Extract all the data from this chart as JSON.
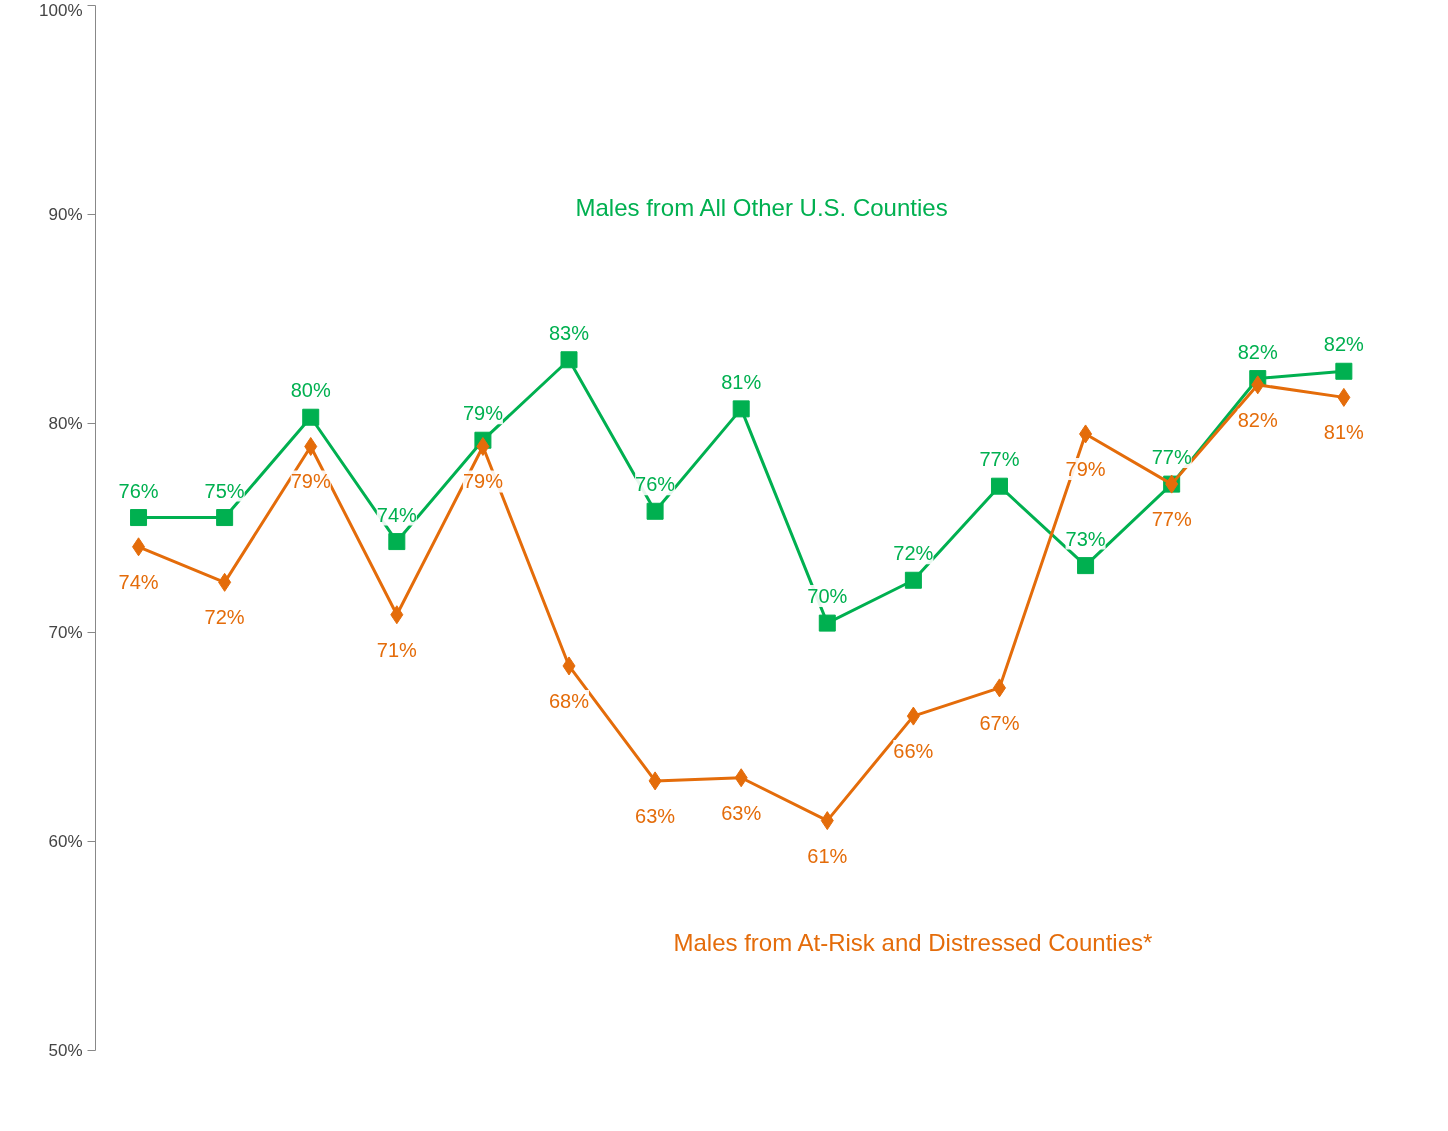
{
  "chart_data": {
    "type": "line",
    "categories": [
      null,
      null,
      null,
      null,
      null,
      null,
      null,
      null,
      null,
      null,
      null,
      null,
      null,
      null,
      null
    ],
    "ylim": [
      50,
      100
    ],
    "yticks": [
      {
        "value": 50,
        "label": "50%"
      },
      {
        "value": 60,
        "label": "60%"
      },
      {
        "value": 70,
        "label": "70%"
      },
      {
        "value": 80,
        "label": "80%"
      },
      {
        "value": 90,
        "label": "90%"
      },
      {
        "value": 100,
        "label": "100%"
      }
    ],
    "tick_labels": "y",
    "grid": false,
    "line_style": "solid",
    "series": [
      {
        "name": "Males from All Other U.S. Counties",
        "color": "#00b050",
        "marker": "square",
        "values": [
          75.5,
          75.5,
          80.3,
          74.35,
          79.2,
          83.05,
          75.8,
          80.7,
          70.45,
          72.5,
          77.0,
          73.2,
          77.1,
          82.15,
          82.5
        ],
        "value_labels": [
          "76%",
          "75%",
          "80%",
          "74%",
          "79%",
          "83%",
          "76%",
          "81%",
          "70%",
          "72%",
          "77%",
          "73%",
          "77%",
          "82%",
          "82%"
        ]
      },
      {
        "name": "Males from At-Risk and Distressed Counties*",
        "color": "#e46c0a",
        "marker": "diamond",
        "values": [
          74.1,
          72.4,
          78.9,
          70.85,
          78.9,
          68.4,
          62.9,
          63.05,
          61.0,
          66.0,
          67.35,
          79.5,
          77.1,
          81.85,
          81.25
        ],
        "value_labels": [
          "74%",
          "72%",
          "79%",
          "71%",
          "79%",
          "68%",
          "63%",
          "63%",
          "61%",
          "66%",
          "67%",
          "79%",
          "77%",
          "82%",
          "81%"
        ]
      }
    ]
  }
}
